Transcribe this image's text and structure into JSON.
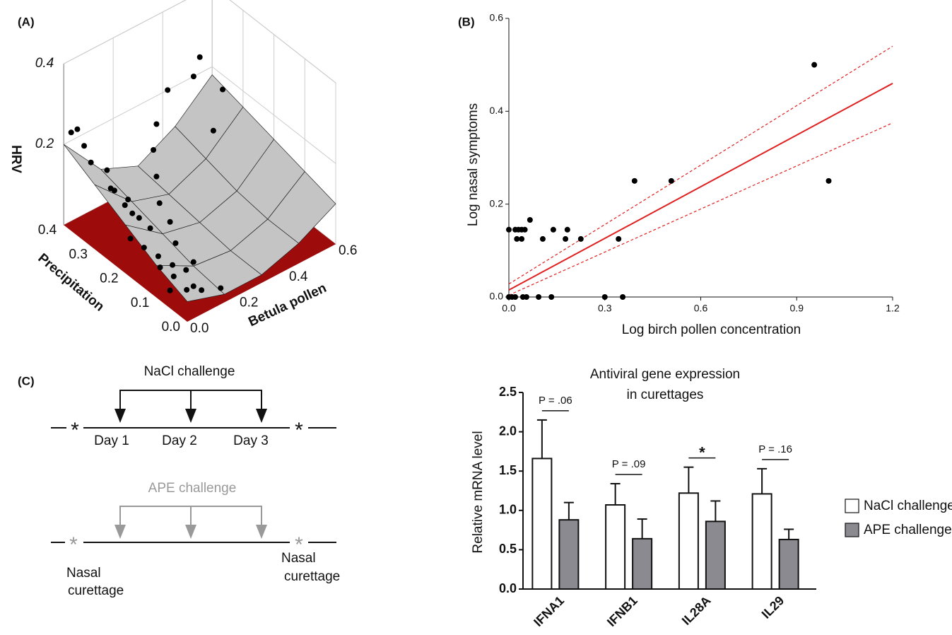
{
  "panel_labels": [
    "(A)",
    "(B)",
    "(C)"
  ],
  "diagram": {
    "nacl_label": "NaCl challenge",
    "days": [
      "Day 1",
      "Day 2",
      "Day 3"
    ],
    "ape_label": "APE challenge",
    "asterisks": [
      "*",
      "*",
      "*",
      "*"
    ],
    "curettage_labels": [
      [
        "Nasal",
        "curettage"
      ],
      [
        "Nasal",
        "curettage"
      ]
    ]
  },
  "chart_data": [
    {
      "type": "surface3d",
      "xlabel": "Betula pollen",
      "ylabel": "Precipitation",
      "zlabel": "HRV",
      "xlim": [
        0,
        0.6
      ],
      "ylim": [
        0,
        0.4
      ],
      "zlim": [
        0,
        0.4
      ],
      "xticks": [
        {
          "value": 0,
          "label": "0.0"
        },
        0.2,
        0.4,
        0.6
      ],
      "yticks": [
        {
          "value": 0,
          "label": "0.0"
        },
        0.1,
        0.2,
        0.3,
        0.4
      ],
      "zticks": [
        0.2,
        0.4
      ],
      "floor_color": "#9e0b0b",
      "surface_color": "#c4c4c4",
      "point_color": "#000000",
      "surface": {
        "x": [
          0,
          0.15,
          0.3,
          0.45,
          0.6
        ],
        "y": [
          0,
          0.1,
          0.2,
          0.3,
          0.4
        ],
        "z": [
          [
            0.05,
            0.02,
            0.02,
            0.05,
            0.1
          ],
          [
            0.08,
            0.03,
            0.02,
            0.05,
            0.12
          ],
          [
            0.12,
            0.05,
            0.03,
            0.06,
            0.14
          ],
          [
            0.16,
            0.07,
            0.04,
            0.08,
            0.16
          ],
          [
            0.2,
            0.09,
            0.05,
            0.1,
            0.18
          ]
        ]
      },
      "points": {
        "x": [
          0.02,
          0.03,
          0.05,
          0.04,
          0.06,
          0.08,
          0.1,
          0.05,
          0.07,
          0.09,
          0.12,
          0.03,
          0.06,
          0.1,
          0.14,
          0.18,
          0.2,
          0.08,
          0.11,
          0.15,
          0.04,
          0.02,
          0.01,
          0.03,
          0.25,
          0.3,
          0.35,
          0.42,
          0.5,
          0.55,
          0.58,
          0.48,
          0.12,
          0.16,
          0.07,
          0.09
        ],
        "y": [
          0.35,
          0.38,
          0.3,
          0.28,
          0.25,
          0.22,
          0.2,
          0.18,
          0.15,
          0.12,
          0.1,
          0.08,
          0.05,
          0.06,
          0.15,
          0.2,
          0.25,
          0.3,
          0.28,
          0.1,
          0.12,
          0.2,
          0.32,
          0.4,
          0.3,
          0.35,
          0.38,
          0.4,
          0.38,
          0.4,
          0.35,
          0.3,
          0.05,
          0.02,
          0.1,
          0.25
        ],
        "z": [
          0.22,
          0.24,
          0.18,
          0.15,
          0.12,
          0.1,
          0.08,
          0.06,
          0.05,
          0.04,
          0.03,
          0.02,
          0.03,
          0.02,
          0.06,
          0.07,
          0.08,
          0.12,
          0.1,
          0.04,
          0.05,
          0.08,
          0.2,
          0.22,
          0.1,
          0.12,
          0.15,
          0.2,
          0.22,
          0.24,
          0.18,
          0.14,
          0.01,
          0.02,
          0.03,
          0.09
        ]
      }
    },
    {
      "type": "scatter",
      "xlabel": "Log birch pollen concentration",
      "ylabel": "Log nasal symptoms",
      "xlim": [
        0,
        1.2
      ],
      "ylim": [
        0,
        0.6
      ],
      "xticks": [
        {
          "value": 0,
          "label": "0.0"
        },
        0.3,
        0.6,
        0.9,
        1.2
      ],
      "yticks": [
        {
          "value": 0,
          "label": "0.0"
        },
        0.2,
        0.4,
        0.6
      ],
      "color": "#000000",
      "x": [
        0,
        0.02,
        0.03,
        0.04,
        0.05,
        0.025,
        0.04,
        0.066,
        0.106,
        0.139,
        0.177,
        0.183,
        0.225,
        0.343,
        0.393,
        0.508,
        0.955,
        1.0,
        0,
        0.01,
        0.02,
        0.044,
        0.055,
        0.093,
        0.133,
        0.3,
        0.356
      ],
      "values": [
        0.145,
        0.145,
        0.145,
        0.145,
        0.145,
        0.125,
        0.125,
        0.166,
        0.125,
        0.145,
        0.125,
        0.145,
        0.125,
        0.125,
        0.25,
        0.25,
        0.5,
        0.25,
        0,
        0,
        0,
        0,
        0,
        0,
        0,
        0,
        0
      ],
      "fit_lines": [
        {
          "x": [
            0,
            1.2
          ],
          "values": [
            0.015,
            0.46
          ],
          "color": "#e02020",
          "dashed": false
        },
        {
          "x": [
            0,
            1.2
          ],
          "values": [
            0.028,
            0.54
          ],
          "color": "#e02020",
          "dashed": true
        },
        {
          "x": [
            0,
            1.2
          ],
          "values": [
            0.004,
            0.375
          ],
          "color": "#e02020",
          "dashed": true
        }
      ]
    },
    {
      "type": "bar",
      "title": [
        "Antiviral gene expression",
        "in curettages"
      ],
      "ylabel": "Relative mRNA level",
      "categories": [
        "IFNA1",
        "IFNB1",
        "IL28A",
        "IL29"
      ],
      "ylim": [
        0,
        2.5
      ],
      "yticks": [
        {
          "value": 0,
          "label": "0.0"
        },
        0.5,
        {
          "value": 1,
          "label": "1.0"
        },
        1.5,
        {
          "value": 2,
          "label": "2.0"
        },
        2.5
      ],
      "annotations": [
        "P = .06",
        "P = .09",
        "*",
        "P = .16"
      ],
      "series": [
        {
          "name": "NaCl challenge",
          "color": "#ffffff",
          "values": [
            1.66,
            1.07,
            1.22,
            1.21
          ],
          "errors": [
            0.49,
            0.27,
            0.33,
            0.32
          ]
        },
        {
          "name": "APE challenge",
          "color": "#8a8a90",
          "values": [
            0.88,
            0.64,
            0.86,
            0.63
          ],
          "errors": [
            0.22,
            0.25,
            0.26,
            0.13
          ]
        }
      ]
    }
  ]
}
